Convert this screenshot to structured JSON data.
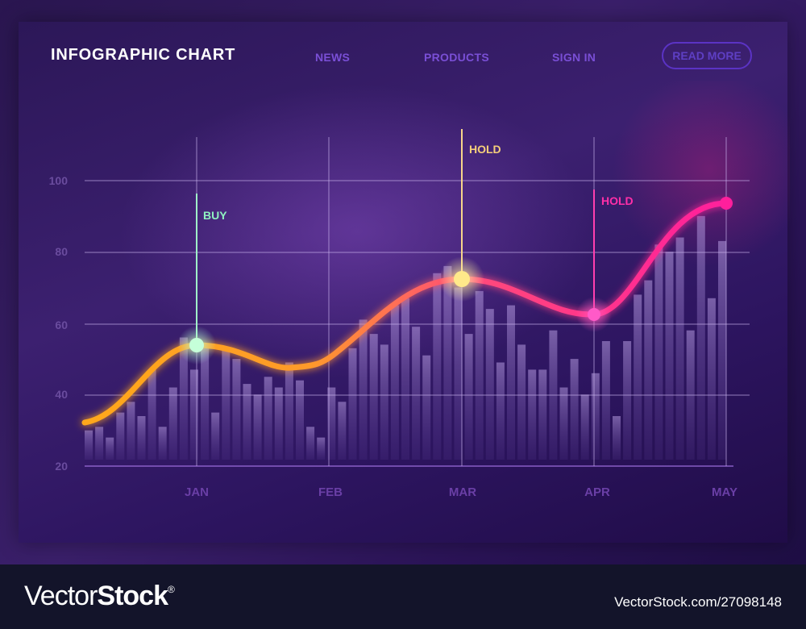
{
  "header": {
    "title": "INFOGRAPHIC CHART",
    "nav": [
      {
        "label": "NEWS"
      },
      {
        "label": "PRODUCTS"
      },
      {
        "label": "SIGN IN"
      }
    ],
    "cta_label": "READ MORE"
  },
  "colors": {
    "background": "#2c1758",
    "nav_text": "#7a4fd6",
    "cta_border": "#5b33c4",
    "axis_text": "#6a4c9e",
    "buy": "#8ff0c0",
    "hold_1": "#f5cf7a",
    "hold_2": "#ff2fa8",
    "line_start": "#ffa81a",
    "line_end": "#ff1f9c",
    "bars": "#9a7ccf"
  },
  "markers": [
    {
      "label": "BUY",
      "month": "JAN",
      "value": 55,
      "color": "#8ff0c0"
    },
    {
      "label": "HOLD",
      "month": "MAR",
      "value": 73,
      "color": "#f5cf7a"
    },
    {
      "label": "HOLD",
      "month": "APR",
      "value": 63,
      "color": "#ff2fa8"
    }
  ],
  "chart_data": {
    "type": "line",
    "title": "INFOGRAPHIC CHART",
    "xlabel": "",
    "ylabel": "",
    "categories": [
      "JAN",
      "FEB",
      "MAR",
      "APR",
      "MAY"
    ],
    "yticks": [
      20,
      40,
      60,
      80,
      100
    ],
    "ylim": [
      20,
      100
    ],
    "grid": true,
    "series": [
      {
        "name": "trend line",
        "type": "line",
        "x": [
          "start",
          "JAN",
          "mid JAN-FEB",
          "FEB",
          "MAR",
          "APR",
          "MAY"
        ],
        "values": [
          33,
          55,
          48,
          52,
          73,
          63,
          94
        ]
      },
      {
        "name": "volume bars",
        "type": "bar",
        "values": [
          30,
          31,
          28,
          35,
          38,
          34,
          47,
          31,
          42,
          56,
          47,
          53,
          35,
          53,
          50,
          43,
          40,
          45,
          42,
          49,
          44,
          31,
          28,
          42,
          38,
          53,
          61,
          57,
          54,
          65,
          67,
          59,
          51,
          74,
          76,
          70,
          57,
          69,
          64,
          49,
          65,
          54,
          47,
          47,
          58,
          42,
          50,
          40,
          46,
          55,
          34,
          55,
          68,
          72,
          82,
          80,
          84,
          58,
          90,
          67,
          83
        ]
      }
    ],
    "annotations": [
      {
        "text": "BUY",
        "x": "JAN",
        "y": 55
      },
      {
        "text": "HOLD",
        "x": "MAR",
        "y": 73
      },
      {
        "text": "HOLD",
        "x": "APR",
        "y": 63
      }
    ]
  },
  "footer": {
    "brand_light": "Vector",
    "brand_bold": "Stock",
    "brand_mark": "®",
    "stock_id": "VectorStock.com/27098148"
  }
}
